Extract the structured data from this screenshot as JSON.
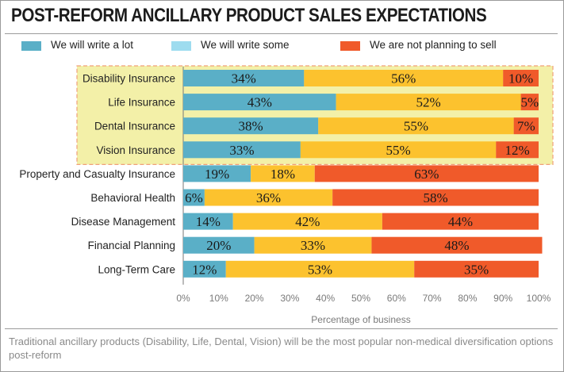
{
  "title": "POST-REFORM ANCILLARY PRODUCT SALES EXPECTATIONS",
  "legend": [
    {
      "label": "We will write a lot",
      "color": "#5aafc7"
    },
    {
      "label": "We will write some",
      "color": "#9edcef"
    },
    {
      "label": "We are not planning to sell",
      "color": "#f05a2a"
    }
  ],
  "footnote": "Traditional ancillary products (Disability, Life, Dental, Vision) will be the most popular non-medical diversification options post-reform",
  "colors": {
    "write_a_lot": "#5aafc7",
    "write_some": "#fcc22e",
    "not_planning": "#f05a2a",
    "highlight_fill": "#f3f0a8",
    "highlight_border": "#f0a07a"
  },
  "chart_data": {
    "type": "bar",
    "orientation": "horizontal",
    "stacked": true,
    "categories": [
      "Disability Insurance",
      "Life Insurance",
      "Dental Insurance",
      "Vision Insurance",
      "Property and Casualty Insurance",
      "Behavioral Health",
      "Disease Management",
      "Financial Planning",
      "Long-Term Care"
    ],
    "series": [
      {
        "name": "We will write a lot",
        "values": [
          34,
          43,
          38,
          33,
          19,
          6,
          14,
          20,
          12
        ]
      },
      {
        "name": "We will write some",
        "values": [
          56,
          52,
          55,
          55,
          18,
          36,
          42,
          33,
          53
        ]
      },
      {
        "name": "We are not planning to sell",
        "values": [
          10,
          5,
          7,
          12,
          63,
          58,
          44,
          48,
          35
        ]
      }
    ],
    "data_labels": [
      [
        "34%",
        "56%",
        "10%"
      ],
      [
        "43%",
        "52%",
        "5%"
      ],
      [
        "38%",
        "55%",
        "7%"
      ],
      [
        "33%",
        "55%",
        "12%"
      ],
      [
        "19%",
        "18%",
        "63%"
      ],
      [
        "6%",
        "36%",
        "58%"
      ],
      [
        "14%",
        "42%",
        "44%"
      ],
      [
        "20%",
        "33%",
        "48%"
      ],
      [
        "12%",
        "53%",
        "35%"
      ]
    ],
    "highlighted_categories": [
      "Disability Insurance",
      "Life Insurance",
      "Dental Insurance",
      "Vision Insurance"
    ],
    "xlim": [
      0,
      100
    ],
    "x_ticks": [
      "0%",
      "10%",
      "20%",
      "30%",
      "40%",
      "50%",
      "60%",
      "70%",
      "80%",
      "90%",
      "100%"
    ],
    "xlabel": "Percentage of business",
    "ylabel": "",
    "grid": false,
    "legend_position": "top"
  }
}
